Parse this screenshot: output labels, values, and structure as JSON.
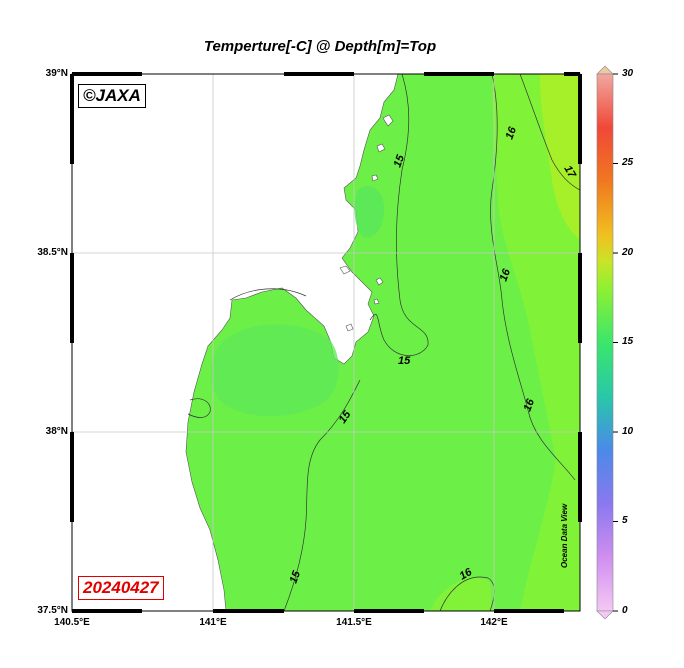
{
  "title": "Temperture[-C] @ Depth[m]=Top",
  "watermark": "©JAXA",
  "date_stamp": "20240427",
  "credit": "Ocean Data View",
  "colors": {
    "sea_main": "#6cf048",
    "sea_cool": "#55e65a",
    "sea_warm": "#8ff232",
    "sea_warmest": "#a6f02a",
    "land": "#ffffff",
    "grid": "#c8c8c8",
    "date_red": "#e00000"
  },
  "axes": {
    "y_ticks": [
      "39°N",
      "38.5°N",
      "38°N",
      "37.5°N"
    ],
    "x_ticks": [
      "140.5°E",
      "141°E",
      "141.5°E",
      "142°E"
    ]
  },
  "colorbar": {
    "variable": "Temperature",
    "units": "°C",
    "range": [
      0,
      30
    ],
    "tick_labels": [
      "30",
      "25",
      "20",
      "15",
      "10",
      "5",
      "0"
    ]
  },
  "contour_labels": [
    "15",
    "15",
    "15",
    "15",
    "16",
    "16",
    "16",
    "16",
    "17"
  ],
  "chart_data": {
    "type": "heatmap",
    "title": "Temperture[-C] @ Depth[m]=Top",
    "lon_range": [
      140.5,
      142.3
    ],
    "lat_range": [
      37.5,
      39.0
    ],
    "value_range": [
      0,
      30
    ],
    "contour_levels": [
      15,
      16,
      17
    ],
    "grid": true
  }
}
